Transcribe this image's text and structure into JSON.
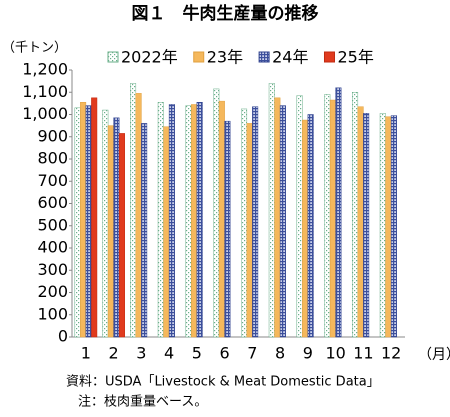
{
  "chart_data": {
    "type": "bar",
    "title": "図１　牛肉生産量の推移",
    "y_label": "（千トン）",
    "x_label": "（月）",
    "source": "資料：USDA「Livestock & Meat Domestic Data」",
    "note": "注：枝肉重量ベース。",
    "categories": [
      "1",
      "2",
      "3",
      "4",
      "5",
      "6",
      "7",
      "8",
      "9",
      "10",
      "11",
      "12"
    ],
    "series": [
      {
        "name": "2022年",
        "color": "#7fbf9f",
        "values": [
          1030,
          1020,
          1140,
          1055,
          1040,
          1115,
          1025,
          1140,
          1085,
          1090,
          1100,
          1005
        ]
      },
      {
        "name": "23年",
        "color": "#f5b85c",
        "values": [
          1055,
          950,
          1095,
          945,
          1045,
          1060,
          960,
          1075,
          975,
          1065,
          1035,
          990
        ]
      },
      {
        "name": "24年",
        "color": "#3c4f9c",
        "values": [
          1040,
          985,
          960,
          1045,
          1055,
          970,
          1035,
          1040,
          1000,
          1120,
          1005,
          995
        ]
      },
      {
        "name": "25年",
        "color": "#e03a1e",
        "values": [
          1075,
          915,
          null,
          null,
          null,
          null,
          null,
          null,
          null,
          null,
          null,
          null
        ]
      }
    ],
    "ylim": [
      0,
      1200
    ],
    "yticks": [
      0,
      100,
      200,
      300,
      400,
      500,
      600,
      700,
      800,
      900,
      {
        "value": 1000,
        "label": "1,000"
      },
      {
        "value": 1100,
        "label": "1,100"
      },
      {
        "value": 1200,
        "label": "1,200"
      }
    ],
    "legend": "top"
  }
}
